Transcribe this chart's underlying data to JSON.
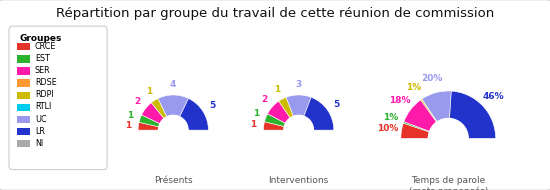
{
  "title": "Répartition par groupe du travail de cette réunion de commission",
  "groups": [
    "CRCE",
    "EST",
    "SER",
    "RDSE",
    "RDPI",
    "RTLI",
    "UC",
    "LR",
    "NI"
  ],
  "colors": [
    "#e63329",
    "#2db22d",
    "#ff1aaa",
    "#ff9933",
    "#ccbb00",
    "#00ccee",
    "#9999ee",
    "#2233cc",
    "#aaaaaa"
  ],
  "presences": [
    1,
    1,
    2,
    0,
    1,
    0,
    4,
    5,
    0
  ],
  "interventions": [
    1,
    1,
    2,
    0,
    1,
    0,
    3,
    5,
    0
  ],
  "temps": [
    10,
    1,
    18,
    0,
    1,
    0,
    20,
    46,
    0
  ],
  "legend_title": "Groupes",
  "chart_labels": [
    "Présents",
    "Interventions",
    "Temps de parole\n(mots prononcés)"
  ],
  "bg_color": "#e8e8e8",
  "box_color": "#ffffff",
  "border_color": "#cccccc",
  "title_fontsize": 9.5,
  "legend_fontsize": 6.5,
  "label_fontsize": 6.5,
  "chart_label_fontsize": 6.5,
  "outer_r": 1.0,
  "inner_r": 0.42
}
